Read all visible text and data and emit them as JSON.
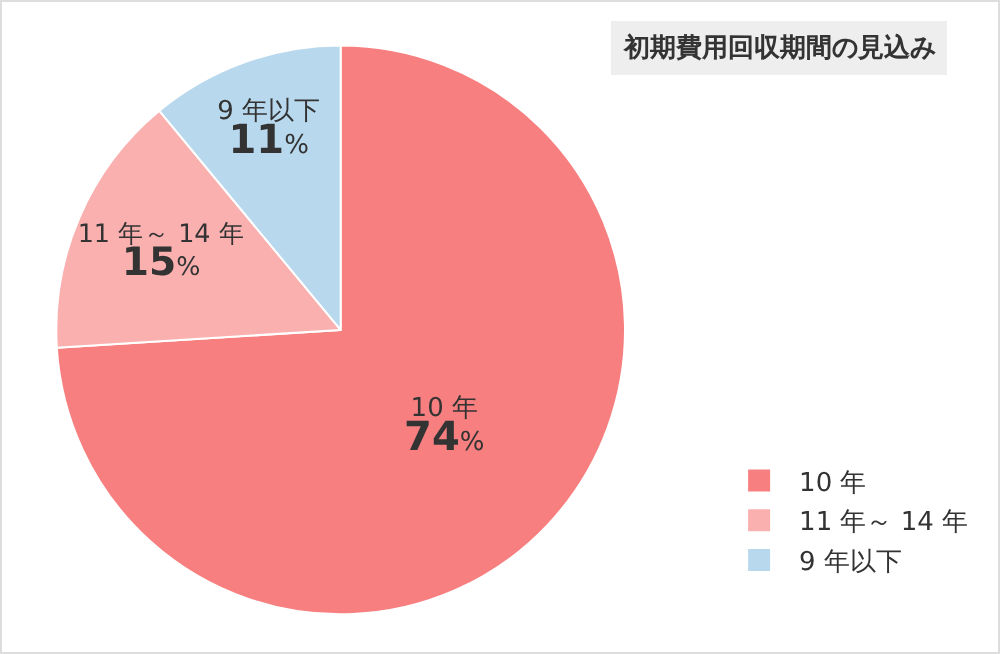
{
  "chart_data": {
    "type": "pie",
    "title": "初期費用回収期間の見込み",
    "categories": [
      "10 年",
      "11 年～ 14 年",
      "9 年以下"
    ],
    "values": [
      74,
      15,
      11
    ],
    "value_labels": [
      "74%",
      "15%",
      "11%"
    ],
    "colors": [
      "#f77f7f",
      "#fbb0b0",
      "#b8d8ee"
    ],
    "legend": "bottom right"
  }
}
